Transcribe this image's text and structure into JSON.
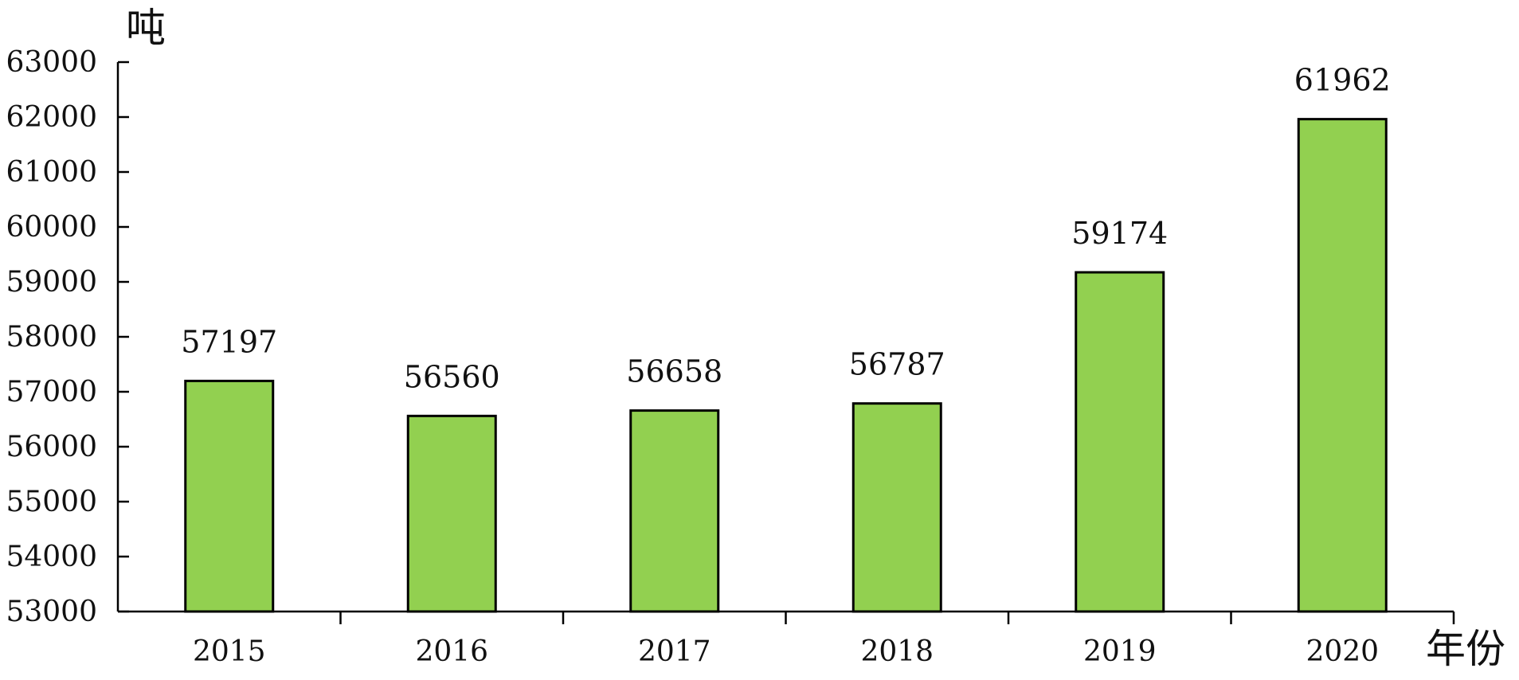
{
  "chart_data": {
    "type": "bar",
    "categories": [
      "2015",
      "2016",
      "2017",
      "2018",
      "2019",
      "2020"
    ],
    "values": [
      57197,
      56560,
      56658,
      56787,
      59174,
      61962
    ],
    "data_labels": [
      "57197",
      "56560",
      "56658",
      "56787",
      "59174",
      "61962"
    ],
    "title": "",
    "xlabel": "年份",
    "ylabel": "吨",
    "ylim": [
      53000,
      63000
    ],
    "y_ticks": [
      53000,
      54000,
      55000,
      56000,
      57000,
      58000,
      59000,
      60000,
      61000,
      62000,
      63000
    ],
    "y_tick_labels": [
      "53000",
      "54000",
      "55000",
      "56000",
      "57000",
      "58000",
      "59000",
      "60000",
      "61000",
      "62000",
      "63000"
    ],
    "grid": false,
    "legend": "none",
    "colors": {
      "bar_fill": "#92d050",
      "bar_stroke": "#000000",
      "axis": "#000000"
    }
  }
}
